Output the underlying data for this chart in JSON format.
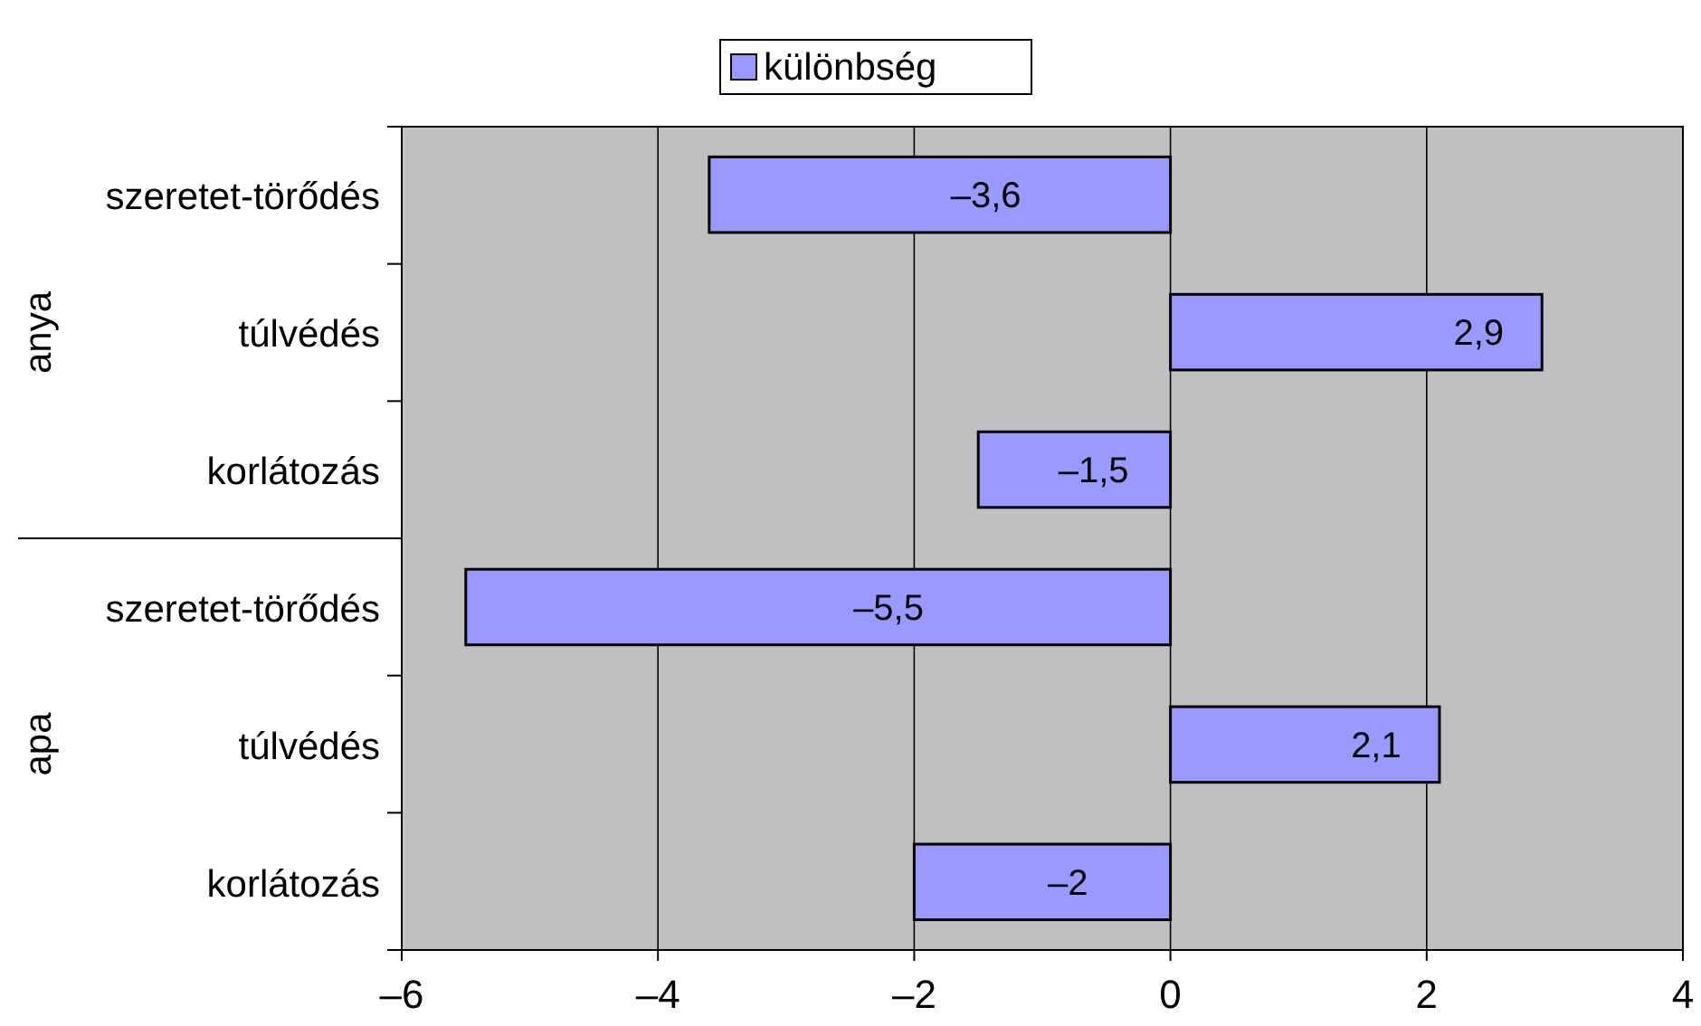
{
  "chart_data": {
    "type": "bar",
    "orientation": "horizontal",
    "categories": [
      "szeretet-törődés",
      "túlvédés",
      "korlátozás",
      "szeretet-törődés",
      "túlvédés",
      "korlátozás"
    ],
    "series": [
      {
        "name": "különbség",
        "color": "#9999ff",
        "values": [
          -3.6,
          2.9,
          -1.5,
          -5.5,
          2.1,
          -2
        ],
        "value_labels": [
          "–3,6",
          "2,9",
          "–1,5",
          "–5,5",
          "2,1",
          "–2"
        ]
      }
    ],
    "xlim": [
      -6,
      4
    ],
    "xticks": [
      {
        "value": -6,
        "label": "–6"
      },
      {
        "value": -4,
        "label": "–4"
      },
      {
        "value": -2,
        "label": "–2"
      },
      0,
      2,
      4
    ],
    "grid": "x",
    "legend": "top",
    "annotations": [
      "anya",
      "apa"
    ]
  }
}
